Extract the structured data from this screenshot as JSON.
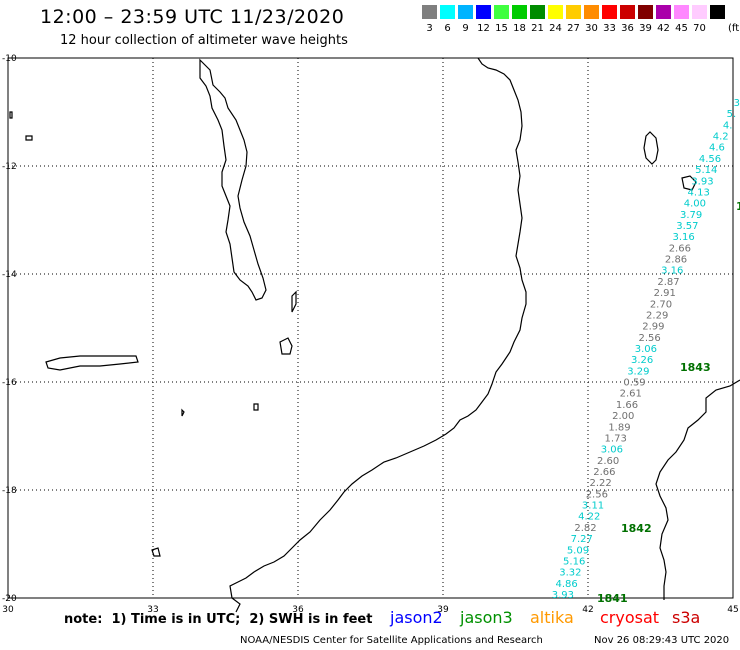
{
  "header": {
    "title": "12:00 – 23:59 UTC 11/23/2020",
    "subtitle": "12 hour collection of altimeter wave heights"
  },
  "legend": {
    "unit": "(ft)",
    "swatches": [
      {
        "color": "#7f7f7f",
        "label": "3"
      },
      {
        "color": "#00ffff",
        "label": "6"
      },
      {
        "color": "#00b4ff",
        "label": "9"
      },
      {
        "color": "#0000ff",
        "label": "12"
      },
      {
        "color": "#40ff40",
        "label": "15"
      },
      {
        "color": "#00cc00",
        "label": "18"
      },
      {
        "color": "#008c00",
        "label": "21"
      },
      {
        "color": "#ffff00",
        "label": "24"
      },
      {
        "color": "#ffcc00",
        "label": "27"
      },
      {
        "color": "#ff8c00",
        "label": "30"
      },
      {
        "color": "#ff0000",
        "label": "33"
      },
      {
        "color": "#cc0000",
        "label": "36"
      },
      {
        "color": "#800000",
        "label": "39"
      },
      {
        "color": "#aa00aa",
        "label": "42"
      },
      {
        "color": "#ff88ff",
        "label": "45"
      },
      {
        "color": "#ffccff",
        "label": "70"
      },
      {
        "color": "#000000",
        "label": ""
      }
    ]
  },
  "axes": {
    "lon_ticks": [
      "30",
      "33",
      "36",
      "39",
      "42",
      "45"
    ],
    "lat_ticks": [
      "-10",
      "-12",
      "-14",
      "-16",
      "-18",
      "-20"
    ]
  },
  "observations": {
    "values": [
      "3",
      "5.",
      "4.",
      "4.2",
      "4.6",
      "4.56",
      "5.14",
      "3.93",
      "4.13",
      "4.00",
      "3.79",
      "3.57",
      "3.16",
      "2.66",
      "2.86",
      "3.16",
      "2.87",
      "2.91",
      "2.70",
      "2.29",
      "2.99",
      "2.56",
      "3.06",
      "3.26",
      "3.29",
      "0.59",
      "2.61",
      "1.66",
      "2.00",
      "1.89",
      "1.73",
      "3.06",
      "2.60",
      "2.66",
      "2.22",
      "2.56",
      "3.11",
      "4.22",
      "2.82",
      "7.27",
      "5.09",
      "5.16",
      "3.32",
      "4.86",
      "3.93"
    ],
    "colors": [
      "#00cccc",
      "#00cccc",
      "#00cccc",
      "#00cccc",
      "#00cccc",
      "#00cccc",
      "#00cccc",
      "#00cccc",
      "#00cccc",
      "#00cccc",
      "#00cccc",
      "#00cccc",
      "#00cccc",
      "#707070",
      "#707070",
      "#00cccc",
      "#707070",
      "#707070",
      "#707070",
      "#707070",
      "#707070",
      "#707070",
      "#00cccc",
      "#00cccc",
      "#00cccc",
      "#707070",
      "#707070",
      "#707070",
      "#707070",
      "#707070",
      "#707070",
      "#00cccc",
      "#707070",
      "#707070",
      "#707070",
      "#707070",
      "#00cccc",
      "#00cccc",
      "#707070",
      "#00cccc",
      "#00cccc",
      "#00cccc",
      "#00cccc",
      "#00cccc",
      "#00cccc"
    ],
    "pass_labels": [
      "1843",
      "1842",
      "1841",
      "1"
    ],
    "pass_color": "#007000"
  },
  "footer": {
    "note": "note:  1) Time is in UTC;  2) SWH is in feet",
    "satellites": [
      {
        "name": "jason2",
        "color": "#0000ff"
      },
      {
        "name": "jason3",
        "color": "#009000"
      },
      {
        "name": "altika",
        "color": "#ff9900"
      },
      {
        "name": "cryosat",
        "color": "#ff0000"
      },
      {
        "name": "s3a",
        "color": "#cc0000"
      }
    ],
    "credit": "NOAA/NESDIS Center for Satellite Applications and Research",
    "timestamp": "Nov 26 08:29:43 UTC 2020"
  }
}
